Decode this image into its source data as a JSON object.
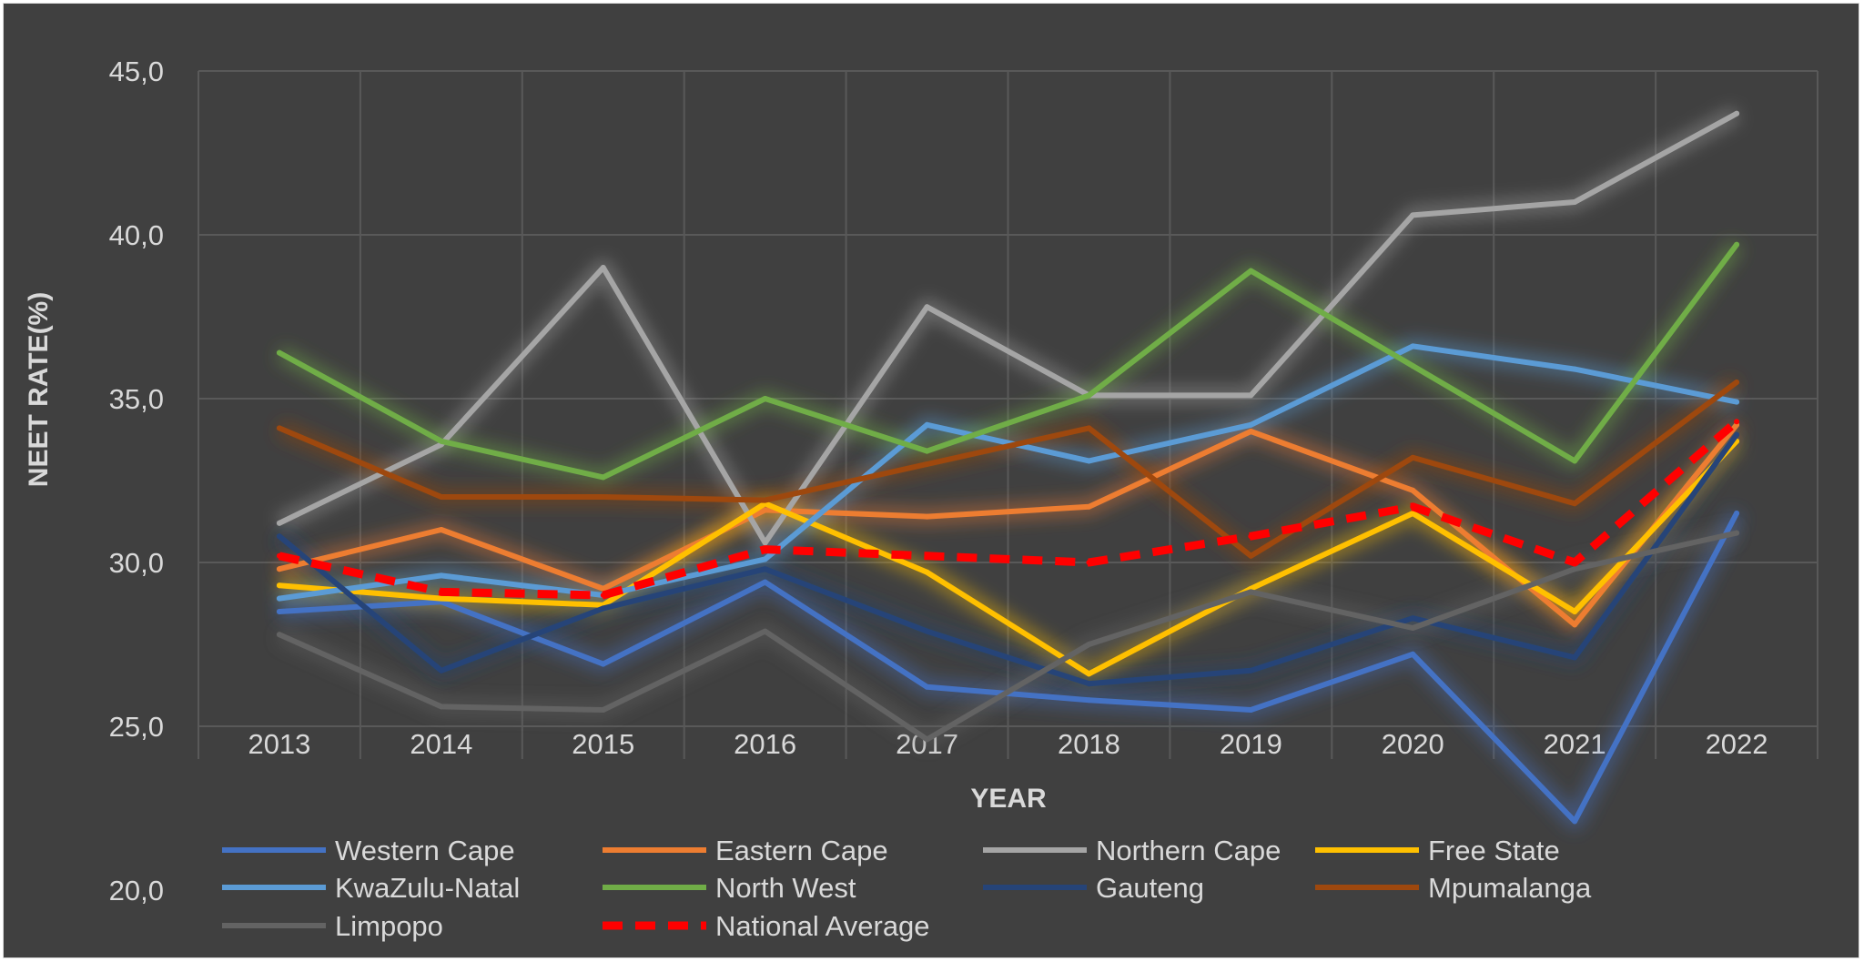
{
  "chart_data": {
    "type": "line",
    "title": "",
    "xlabel": "YEAR",
    "ylabel": "NEET RATE(%)",
    "ylim": [
      20,
      45
    ],
    "yticks": [
      "20,0",
      "25,0",
      "30,0",
      "35,0",
      "40,0",
      "45,0"
    ],
    "ytick_values": [
      20,
      25,
      30,
      35,
      40,
      45
    ],
    "grid": true,
    "legend_position": "bottom",
    "background": "#404040",
    "categories": [
      "2013",
      "2014",
      "2015",
      "2016",
      "2017",
      "2018",
      "2019",
      "2020",
      "2021",
      "2022"
    ],
    "series": [
      {
        "name": "Western Cape",
        "color": "#4472C4",
        "dashed": false,
        "values": [
          28.5,
          28.8,
          26.9,
          29.4,
          26.2,
          25.8,
          25.5,
          27.2,
          22.1,
          31.5
        ]
      },
      {
        "name": "Eastern Cape",
        "color": "#ED7D31",
        "dashed": false,
        "values": [
          29.8,
          31.0,
          29.2,
          31.6,
          31.4,
          31.7,
          34.0,
          32.2,
          28.1,
          34.2
        ]
      },
      {
        "name": "Northern Cape",
        "color": "#A5A5A5",
        "dashed": false,
        "values": [
          31.2,
          33.6,
          39.0,
          30.6,
          37.8,
          35.1,
          35.1,
          40.6,
          41.0,
          43.7
        ]
      },
      {
        "name": "Free State",
        "color": "#FFC000",
        "dashed": false,
        "values": [
          29.3,
          28.9,
          28.7,
          31.8,
          29.7,
          26.6,
          29.2,
          31.5,
          28.5,
          33.7
        ]
      },
      {
        "name": "KwaZulu-Natal",
        "color": "#5B9BD5",
        "dashed": false,
        "values": [
          28.9,
          29.6,
          29.0,
          30.1,
          34.2,
          33.1,
          34.2,
          36.6,
          35.9,
          34.9
        ]
      },
      {
        "name": "North West",
        "color": "#70AD47",
        "dashed": false,
        "values": [
          36.4,
          33.7,
          32.6,
          35.0,
          33.4,
          35.1,
          38.9,
          36.0,
          33.1,
          39.7
        ]
      },
      {
        "name": "Gauteng",
        "color": "#264478",
        "dashed": false,
        "values": [
          30.8,
          26.7,
          28.6,
          29.8,
          27.9,
          26.3,
          26.7,
          28.3,
          27.1,
          33.9
        ]
      },
      {
        "name": "Mpumalanga",
        "color": "#9E480E",
        "dashed": false,
        "values": [
          34.1,
          32.0,
          32.0,
          31.9,
          33.0,
          34.1,
          30.2,
          33.2,
          31.8,
          35.5
        ]
      },
      {
        "name": "Limpopo",
        "color": "#636363",
        "dashed": false,
        "values": [
          27.8,
          25.6,
          25.5,
          27.9,
          24.6,
          27.5,
          29.1,
          28.0,
          29.8,
          30.9
        ]
      },
      {
        "name": "National Average",
        "color": "#FF0000",
        "dashed": true,
        "values": [
          30.2,
          29.1,
          29.0,
          30.4,
          30.2,
          30.0,
          30.8,
          31.7,
          30.0,
          34.3
        ]
      }
    ]
  }
}
